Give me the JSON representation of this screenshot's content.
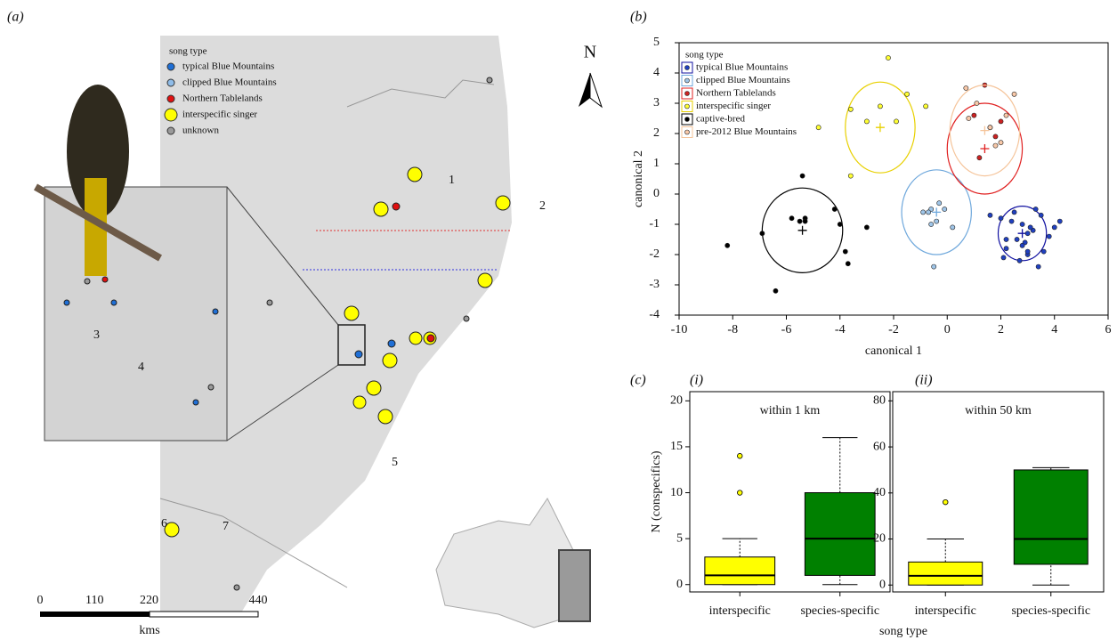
{
  "panels": {
    "a_label": "(a)",
    "b_label": "(b)",
    "c_label": "(c)",
    "c1_label": "(i)",
    "c2_label": "(ii)",
    "c_xlabel": "song type",
    "map": {
      "legend_title": "song type",
      "legend": [
        {
          "name": "typical Blue Mountains",
          "color": "#1f6fd6"
        },
        {
          "name": "clipped Blue Mountains",
          "color": "#8fbce8"
        },
        {
          "name": "Northern Tablelands",
          "color": "#e01010"
        },
        {
          "name": "interspecific singer",
          "color": "#ffff00"
        },
        {
          "name": "unknown",
          "color": "#9a9a9a"
        }
      ],
      "north": "N",
      "scale_ticks": [
        0,
        110,
        220,
        440
      ],
      "scale_unit": "kms",
      "photo_labels": [
        "1",
        "2",
        "3",
        "4",
        "5",
        "6",
        "7"
      ]
    }
  },
  "chart_data": [
    {
      "type": "scatter",
      "xlabel": "canonical 1",
      "ylabel": "canonical 2",
      "xlim": [
        -10,
        6
      ],
      "xticks": [
        -10,
        -8,
        -6,
        -4,
        -2,
        0,
        2,
        4,
        6
      ],
      "ylim": [
        -4,
        5
      ],
      "yticks": [
        -4,
        -3,
        -2,
        -1,
        0,
        1,
        2,
        3,
        4,
        5
      ],
      "legend_title": "song type",
      "legend": "upper left",
      "series": [
        {
          "name": "typical Blue Mountains",
          "color": "#2040c0",
          "ellipse_color": "#1010a0",
          "x": [
            2.8,
            3.0,
            2.6,
            3.2,
            2.4,
            3.5,
            3.8,
            4.2,
            2.0,
            2.2,
            3.0,
            2.7,
            2.9,
            3.1,
            3.3,
            2.5,
            3.6,
            2.1,
            4.0,
            3.4,
            2.8,
            1.6,
            2.2,
            3.0
          ],
          "y": [
            -1.0,
            -1.3,
            -1.5,
            -1.2,
            -0.9,
            -0.7,
            -1.4,
            -0.9,
            -0.8,
            -1.8,
            -2.0,
            -2.2,
            -1.6,
            -1.1,
            -0.5,
            -0.6,
            -1.9,
            -2.1,
            -1.1,
            -2.4,
            -1.7,
            -0.7,
            -1.5,
            -1.9
          ],
          "centroid": [
            2.8,
            -1.3
          ],
          "ellipse": [
            0.9,
            0.9
          ]
        },
        {
          "name": "clipped Blue Mountains",
          "color": "#9fc5e8",
          "ellipse_color": "#6fa8dc",
          "x": [
            -0.9,
            -0.6,
            -0.5,
            -0.3,
            -0.6,
            -0.4,
            0.2,
            -0.1,
            -0.7
          ],
          "y": [
            -0.6,
            -0.5,
            -2.4,
            -0.3,
            -1.0,
            -0.9,
            -1.1,
            -0.5,
            -0.6
          ],
          "centroid": [
            -0.4,
            -0.6
          ],
          "ellipse": [
            1.3,
            1.4
          ]
        },
        {
          "name": "Northern Tablelands",
          "color": "#cc2222",
          "ellipse_color": "#e02020",
          "x": [
            1.4,
            1.0,
            1.6,
            1.8,
            1.2,
            2.0
          ],
          "y": [
            3.6,
            2.6,
            2.2,
            1.9,
            1.2,
            2.4
          ],
          "centroid": [
            1.4,
            1.5
          ],
          "ellipse": [
            1.4,
            1.5
          ]
        },
        {
          "name": "interspecific singer",
          "color": "#ffff33",
          "ellipse_color": "#e8d000",
          "x": [
            -2.2,
            -2.5,
            -1.5,
            -0.8,
            -3.0,
            -3.6,
            -1.9,
            -4.8,
            -3.6
          ],
          "y": [
            4.5,
            2.9,
            3.3,
            2.9,
            2.4,
            0.6,
            2.4,
            2.2,
            2.8
          ],
          "centroid": [
            -2.5,
            2.2
          ],
          "ellipse": [
            1.3,
            1.5
          ]
        },
        {
          "name": "captive-bred",
          "color": "#000000",
          "ellipse_color": "#000000",
          "x": [
            -8.2,
            -6.9,
            -6.4,
            -5.4,
            -5.3,
            -5.5,
            -4.2,
            -3.8,
            -3.7,
            -4.0,
            -3.0,
            -5.3,
            -5.8
          ],
          "y": [
            -1.7,
            -1.3,
            -3.2,
            0.6,
            -0.8,
            -0.9,
            -0.5,
            -1.9,
            -2.3,
            -1.0,
            -1.1,
            -0.9,
            -0.8
          ],
          "centroid": [
            -5.4,
            -1.2
          ],
          "ellipse": [
            1.5,
            1.4
          ]
        },
        {
          "name": "pre-2012 Blue Mountains",
          "color": "#f8c8a8",
          "ellipse_color": "#f5c49a",
          "x": [
            0.8,
            0.7,
            1.1,
            1.6,
            2.2,
            2.5,
            2.0,
            1.8
          ],
          "y": [
            2.5,
            3.5,
            3.0,
            2.2,
            2.6,
            3.3,
            1.7,
            1.6
          ],
          "centroid": [
            1.4,
            2.1
          ],
          "ellipse": [
            1.3,
            1.5
          ]
        }
      ]
    },
    {
      "type": "box",
      "title": "within 1 km",
      "ylabel": "N (conspecifics)",
      "categories": [
        "interspecific",
        "species-specific"
      ],
      "colors": [
        "#ffff00",
        "#008000"
      ],
      "ylim": [
        -0.8,
        21
      ],
      "yticks": [
        0,
        5,
        10,
        15,
        20
      ],
      "boxes": [
        {
          "whisker_low": 0,
          "q1": 0,
          "median": 1,
          "q3": 3,
          "whisker_high": 5,
          "outliers": [
            10,
            14
          ]
        },
        {
          "whisker_low": 0,
          "q1": 1,
          "median": 5,
          "q3": 10,
          "whisker_high": 16,
          "outliers": []
        }
      ]
    },
    {
      "type": "box",
      "title": "within 50 km",
      "categories": [
        "interspecific",
        "species-specific"
      ],
      "colors": [
        "#ffff00",
        "#008000"
      ],
      "ylim": [
        -3,
        84
      ],
      "yticks": [
        0,
        20,
        40,
        60,
        80
      ],
      "boxes": [
        {
          "whisker_low": 0,
          "q1": 0,
          "median": 4,
          "q3": 10,
          "whisker_high": 20,
          "outliers": [
            36
          ]
        },
        {
          "whisker_low": 0,
          "q1": 9,
          "median": 20,
          "q3": 50,
          "whisker_high": 51,
          "outliers": []
        }
      ]
    }
  ]
}
